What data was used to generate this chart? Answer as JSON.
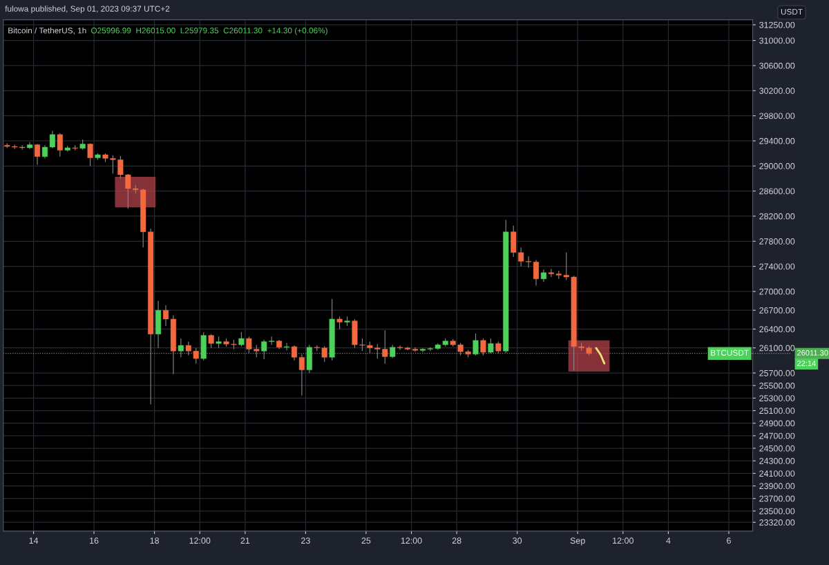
{
  "chart_data": {
    "type": "candlestick",
    "title": "Bitcoin / TetherUS, 1h",
    "subtitle": "O25996.99  H26015.00  L25979.35  C26011.30  +14.30 (+0.06%)",
    "ylabel": "USDT",
    "annotations": [
      "fulowa published, Sep 01, 2023 09:37 UTC+2",
      "BTCUSDT",
      "22:14"
    ],
    "x": [
      "2023-08-13T03:00",
      "2023-08-13T09:00",
      "2023-08-13T15:00",
      "2023-08-13T21:00",
      "2023-08-14T03:00",
      "2023-08-14T09:00",
      "2023-08-14T15:00",
      "2023-08-14T21:00",
      "2023-08-15T03:00",
      "2023-08-15T09:00",
      "2023-08-15T15:00",
      "2023-08-15T21:00",
      "2023-08-16T03:00",
      "2023-08-16T09:00",
      "2023-08-16T15:00",
      "2023-08-16T21:00",
      "2023-08-17T03:00",
      "2023-08-17T09:00",
      "2023-08-17T15:00",
      "2023-08-17T21:00",
      "2023-08-18T03:00",
      "2023-08-18T09:00",
      "2023-08-18T15:00",
      "2023-08-18T21:00",
      "2023-08-19T03:00",
      "2023-08-19T09:00",
      "2023-08-19T15:00",
      "2023-08-19T21:00",
      "2023-08-20T03:00",
      "2023-08-20T09:00",
      "2023-08-20T15:00",
      "2023-08-20T21:00",
      "2023-08-21T03:00",
      "2023-08-21T09:00",
      "2023-08-21T15:00",
      "2023-08-21T21:00",
      "2023-08-22T03:00",
      "2023-08-22T09:00",
      "2023-08-22T15:00",
      "2023-08-22T21:00",
      "2023-08-23T03:00",
      "2023-08-23T09:00",
      "2023-08-23T15:00",
      "2023-08-23T21:00",
      "2023-08-24T03:00",
      "2023-08-24T09:00",
      "2023-08-24T15:00",
      "2023-08-24T21:00",
      "2023-08-25T03:00",
      "2023-08-25T09:00",
      "2023-08-25T15:00",
      "2023-08-25T21:00",
      "2023-08-26T03:00",
      "2023-08-26T09:00",
      "2023-08-26T15:00",
      "2023-08-26T21:00",
      "2023-08-27T03:00",
      "2023-08-27T09:00",
      "2023-08-27T15:00",
      "2023-08-27T21:00",
      "2023-08-28T03:00",
      "2023-08-28T09:00",
      "2023-08-28T15:00",
      "2023-08-28T21:00",
      "2023-08-29T03:00",
      "2023-08-29T09:00",
      "2023-08-29T15:00",
      "2023-08-29T21:00",
      "2023-08-30T03:00",
      "2023-08-30T09:00",
      "2023-08-30T15:00",
      "2023-08-30T21:00",
      "2023-08-31T03:00",
      "2023-08-31T09:00",
      "2023-08-31T15:00",
      "2023-08-31T21:00",
      "2023-09-01T03:00",
      "2023-09-01T09:00"
    ],
    "ohlc": [
      [
        29330,
        29360,
        29290,
        29310
      ],
      [
        29310,
        29340,
        29270,
        29300
      ],
      [
        29300,
        29330,
        29260,
        29290
      ],
      [
        29290,
        29380,
        29270,
        29340
      ],
      [
        29340,
        29350,
        29020,
        29150
      ],
      [
        29150,
        29330,
        29120,
        29300
      ],
      [
        29300,
        29560,
        29280,
        29500
      ],
      [
        29500,
        29520,
        29150,
        29250
      ],
      [
        29250,
        29320,
        29230,
        29290
      ],
      [
        29290,
        29330,
        29250,
        29280
      ],
      [
        29280,
        29420,
        29260,
        29350
      ],
      [
        29350,
        29360,
        29000,
        29130
      ],
      [
        29130,
        29200,
        29100,
        29180
      ],
      [
        29180,
        29200,
        29060,
        29120
      ],
      [
        29120,
        29170,
        28880,
        29100
      ],
      [
        29100,
        29160,
        28800,
        28860
      ],
      [
        28860,
        28870,
        28320,
        28640
      ],
      [
        28640,
        28700,
        28560,
        28620
      ],
      [
        28620,
        28640,
        27700,
        27950
      ],
      [
        27950,
        28000,
        25200,
        26320
      ],
      [
        26320,
        26850,
        26100,
        26700
      ],
      [
        26700,
        26780,
        26450,
        26560
      ],
      [
        26560,
        26620,
        25680,
        26050
      ],
      [
        26050,
        26250,
        25950,
        26140
      ],
      [
        26140,
        26200,
        25980,
        26050
      ],
      [
        26050,
        26100,
        25850,
        25930
      ],
      [
        25930,
        26350,
        25900,
        26300
      ],
      [
        26300,
        26320,
        26100,
        26170
      ],
      [
        26170,
        26280,
        26100,
        26200
      ],
      [
        26200,
        26250,
        26120,
        26160
      ],
      [
        26160,
        26230,
        26080,
        26150
      ],
      [
        26150,
        26350,
        26120,
        26250
      ],
      [
        26250,
        26280,
        26020,
        26080
      ],
      [
        26080,
        26150,
        25950,
        26050
      ],
      [
        26050,
        26230,
        25920,
        26200
      ],
      [
        26200,
        26280,
        26150,
        26210
      ],
      [
        26210,
        26230,
        26080,
        26110
      ],
      [
        26110,
        26180,
        26060,
        26120
      ],
      [
        26120,
        26140,
        25900,
        25950
      ],
      [
        25950,
        26000,
        25340,
        25750
      ],
      [
        25750,
        26150,
        25700,
        26110
      ],
      [
        26110,
        26140,
        26050,
        26100
      ],
      [
        26100,
        26130,
        25880,
        25950
      ],
      [
        25950,
        26880,
        25900,
        26560
      ],
      [
        26560,
        26600,
        26400,
        26510
      ],
      [
        26510,
        26600,
        26450,
        26530
      ],
      [
        26530,
        26560,
        26100,
        26150
      ],
      [
        26150,
        26250,
        26050,
        26140
      ],
      [
        26140,
        26200,
        26020,
        26100
      ],
      [
        26100,
        26160,
        25930,
        26080
      ],
      [
        26080,
        26380,
        25850,
        25960
      ],
      [
        25960,
        26150,
        25940,
        26110
      ],
      [
        26110,
        26140,
        26070,
        26100
      ],
      [
        26100,
        26120,
        26060,
        26080
      ],
      [
        26080,
        26110,
        26040,
        26060
      ],
      [
        26060,
        26100,
        26030,
        26080
      ],
      [
        26080,
        26110,
        26050,
        26090
      ],
      [
        26090,
        26170,
        26070,
        26150
      ],
      [
        26150,
        26250,
        26120,
        26210
      ],
      [
        26210,
        26240,
        26120,
        26150
      ],
      [
        26150,
        26180,
        25980,
        26040
      ],
      [
        26040,
        26070,
        25950,
        26000
      ],
      [
        26000,
        26330,
        25980,
        26220
      ],
      [
        26220,
        26250,
        25980,
        26030
      ],
      [
        26030,
        26250,
        26010,
        26170
      ],
      [
        26170,
        26200,
        26010,
        26050
      ],
      [
        26050,
        28140,
        26020,
        27950
      ],
      [
        27950,
        28050,
        27550,
        27620
      ],
      [
        27620,
        27700,
        27400,
        27480
      ],
      [
        27480,
        27560,
        27380,
        27470
      ],
      [
        27470,
        27500,
        27090,
        27200
      ],
      [
        27200,
        27350,
        27150,
        27300
      ],
      [
        27300,
        27360,
        27230,
        27280
      ],
      [
        27280,
        27330,
        27200,
        27260
      ],
      [
        27260,
        27620,
        27180,
        27230
      ],
      [
        27230,
        27250,
        25740,
        26120
      ],
      [
        26120,
        26180,
        26050,
        26100
      ],
      [
        26100,
        26130,
        25980,
        26010
      ]
    ],
    "colors": [
      "#f2683f",
      "#f2683f",
      "#f2683f",
      "#4cd25a",
      "#f2683f",
      "#4cd25a",
      "#4cd25a",
      "#f2683f",
      "#4cd25a",
      "#f2683f",
      "#4cd25a",
      "#f2683f",
      "#4cd25a",
      "#f2683f",
      "#f2683f",
      "#f2683f",
      "#f2683f",
      "#f2683f",
      "#f2683f",
      "#f2683f",
      "#4cd25a",
      "#f2683f",
      "#f2683f",
      "#4cd25a",
      "#f2683f",
      "#f2683f",
      "#4cd25a",
      "#f2683f",
      "#4cd25a",
      "#f2683f",
      "#f2683f",
      "#4cd25a",
      "#f2683f",
      "#f2683f",
      "#4cd25a",
      "#4cd25a",
      "#f2683f",
      "#4cd25a",
      "#f2683f",
      "#f2683f",
      "#4cd25a",
      "#f2683f",
      "#f2683f",
      "#4cd25a",
      "#f2683f",
      "#4cd25a",
      "#f2683f",
      "#f2683f",
      "#f2683f",
      "#f2683f",
      "#f2683f",
      "#4cd25a",
      "#f2683f",
      "#f2683f",
      "#f2683f",
      "#4cd25a",
      "#4cd25a",
      "#4cd25a",
      "#4cd25a",
      "#f2683f",
      "#f2683f",
      "#f2683f",
      "#4cd25a",
      "#f2683f",
      "#4cd25a",
      "#f2683f",
      "#4cd25a",
      "#f2683f",
      "#f2683f",
      "#f2683f",
      "#f2683f",
      "#4cd25a",
      "#f2683f",
      "#f2683f",
      "#f2683f",
      "#f2683f",
      "#f2683f",
      "#f2683f"
    ],
    "xlim": [
      "2023-08-13T00:00",
      "2023-09-06T19:00"
    ],
    "xticks": [
      {
        "value": "2023-08-14",
        "label": "14"
      },
      {
        "value": "2023-08-16",
        "label": "16"
      },
      {
        "value": "2023-08-18",
        "label": "18"
      },
      {
        "value": "2023-08-19T12:00",
        "label": "12:00"
      },
      {
        "value": "2023-08-21",
        "label": "21"
      },
      {
        "value": "2023-08-23",
        "label": "23"
      },
      {
        "value": "2023-08-25",
        "label": "25"
      },
      {
        "value": "2023-08-26T12:00",
        "label": "12:00"
      },
      {
        "value": "2023-08-28",
        "label": "28"
      },
      {
        "value": "2023-08-30",
        "label": "30"
      },
      {
        "value": "2023-09-01",
        "label": "Sep"
      },
      {
        "value": "2023-09-02T12:00",
        "label": "12:00"
      },
      {
        "value": "2023-09-04",
        "label": "4"
      },
      {
        "value": "2023-09-06",
        "label": "6"
      }
    ],
    "ylim": [
      23180,
      31330
    ],
    "yticks": [
      {
        "value": 31250,
        "label": "31250.00"
      },
      {
        "value": 31000,
        "label": "31000.00"
      },
      {
        "value": 30600,
        "label": "30600.00"
      },
      {
        "value": 30200,
        "label": "30200.00"
      },
      {
        "value": 29800,
        "label": "29800.00"
      },
      {
        "value": 29400,
        "label": "29400.00"
      },
      {
        "value": 29000,
        "label": "29000.00"
      },
      {
        "value": 28600,
        "label": "28600.00"
      },
      {
        "value": 28200,
        "label": "28200.00"
      },
      {
        "value": 27800,
        "label": "27800.00"
      },
      {
        "value": 27400,
        "label": "27400.00"
      },
      {
        "value": 27000,
        "label": "27000.00"
      },
      {
        "value": 26700,
        "label": "26700.00"
      },
      {
        "value": 26400,
        "label": "26400.00"
      },
      {
        "value": 26100,
        "label": "26100.00"
      },
      {
        "value": 25700,
        "label": "25700.00"
      },
      {
        "value": 25500,
        "label": "25500.00"
      },
      {
        "value": 25300,
        "label": "25300.00"
      },
      {
        "value": 25100,
        "label": "25100.00"
      },
      {
        "value": 24900,
        "label": "24900.00"
      },
      {
        "value": 24700,
        "label": "24700.00"
      },
      {
        "value": 24500,
        "label": "24500.00"
      },
      {
        "value": 24300,
        "label": "24300.00"
      },
      {
        "value": 24100,
        "label": "24100.00"
      },
      {
        "value": 23900,
        "label": "23900.00"
      },
      {
        "value": 23700,
        "label": "23700.00"
      },
      {
        "value": 23500,
        "label": "23500.00"
      },
      {
        "value": 23320,
        "label": "23320.00"
      }
    ],
    "ref_lines": [
      {
        "axis": "y",
        "value": 26011.3,
        "label": "26011.30",
        "color": "#4caf50",
        "line_style": "dotted"
      }
    ],
    "grid": true
  }
}
